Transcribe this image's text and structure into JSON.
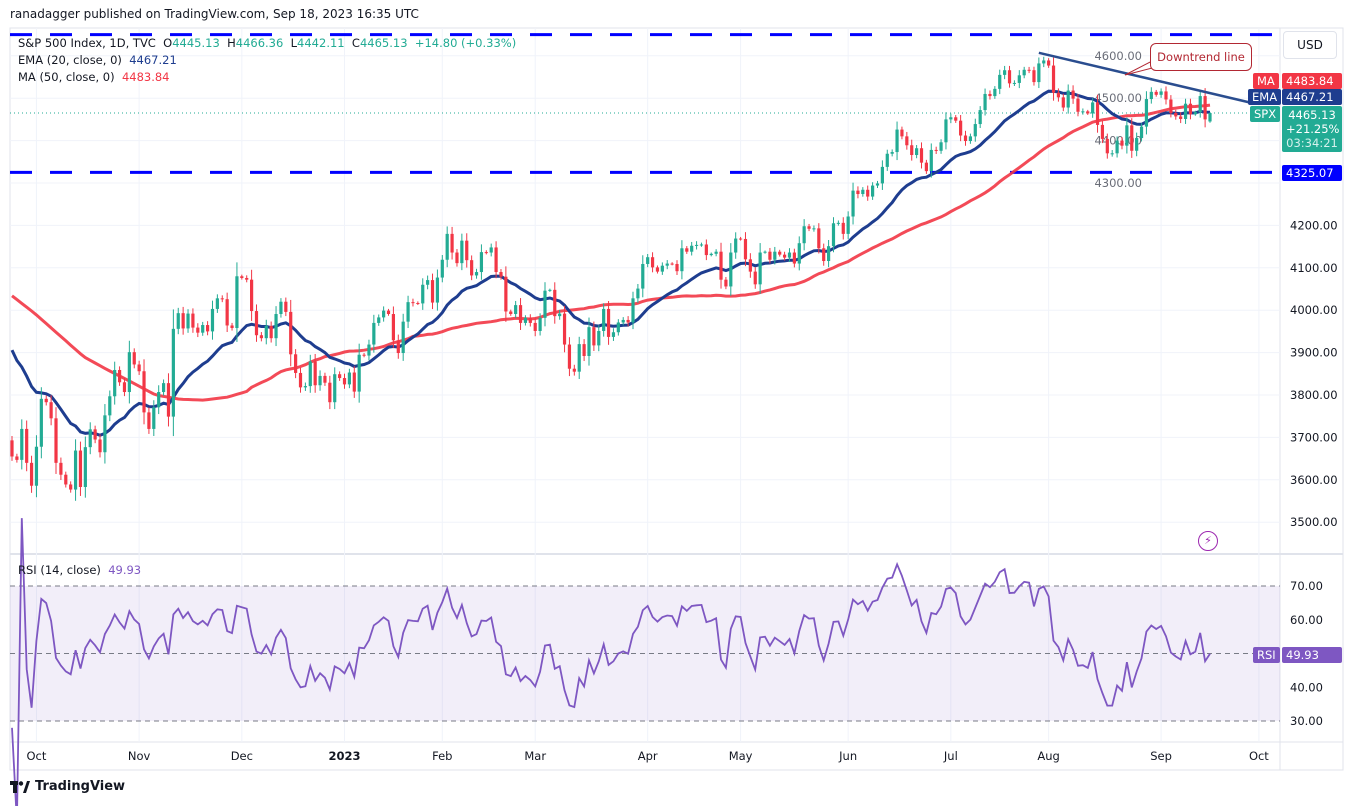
{
  "header": {
    "published": "ranadagger published on TradingView.com, Sep 18, 2023 16:35 UTC"
  },
  "legend": {
    "symbol": "S&P 500 Index, 1D, TVC",
    "o_label": "O",
    "open": "4445.13",
    "h_label": "H",
    "high": "4466.36",
    "l_label": "L",
    "low": "4442.11",
    "c_label": "C",
    "close": "4465.13",
    "change": "+14.80 (+0.33%)",
    "ema_label": "EMA (20, close, 0)",
    "ema_value": "4467.21",
    "ma_label": "MA (50, close, 0)",
    "ma_value": "4483.84",
    "rsi_label": "RSI (14, close)",
    "rsi_value": "49.93"
  },
  "price_scale": {
    "currency": "USD",
    "ma_tag": "MA",
    "ma_price": "4483.84",
    "ema_tag": "EMA",
    "ema_price": "4467.21",
    "spx_tag": "SPX",
    "spx_price": "4465.13",
    "spx_change": "+21.25%",
    "spx_countdown": "03:34:21",
    "level_price": "4325.07",
    "rsi_tag": "RSI",
    "rsi_price": "49.93"
  },
  "annotation": {
    "text": "Downtrend line"
  },
  "footer": {
    "brand": "TradingView"
  },
  "colors": {
    "up": "#22ab94",
    "down": "#f23645",
    "ema": "#1e3d8f",
    "ma": "#f23645",
    "rsi": "#7e57c2",
    "level": "#0000ff",
    "trendline": "#2a4d8f"
  },
  "chart_data": {
    "type": "candlestick",
    "title": "S&P 500 Index, 1D, TVC",
    "ylim": [
      3430,
      4680
    ],
    "yticks": [
      3500,
      3600,
      3700,
      3800,
      3900,
      4000,
      4100,
      4200,
      4300,
      4400,
      4500,
      4600
    ],
    "xtick_labels": [
      "Oct",
      "Nov",
      "Dec",
      "2023",
      "Feb",
      "Mar",
      "Apr",
      "May",
      "Jun",
      "Jul",
      "Aug",
      "Sep",
      "Oct"
    ],
    "grid": true,
    "first_open": 3693,
    "months": [
      {
        "month": "2022-09",
        "closes": [
          3655,
          3647,
          3720,
          3640,
          3586
        ]
      },
      {
        "month": "2022-10",
        "closes": [
          3678,
          3791,
          3783,
          3745,
          3640,
          3612,
          3589,
          3577,
          3669,
          3583,
          3677,
          3719,
          3695,
          3665,
          3752,
          3797,
          3859,
          3830,
          3807,
          3901,
          3872
        ]
      },
      {
        "month": "2022-11",
        "closes": [
          3856,
          3759,
          3720,
          3771,
          3807,
          3828,
          3749,
          3956,
          3993,
          3957,
          3992,
          3959,
          3947,
          3965,
          3950,
          4003,
          4028,
          4026,
          3964,
          3958,
          4080
        ]
      },
      {
        "month": "2022-12",
        "closes": [
          4076,
          4072,
          3998,
          3941,
          3934,
          3963,
          3934,
          3991,
          4020,
          3996,
          3896,
          3852,
          3818,
          3821,
          3879,
          3823,
          3845,
          3829,
          3783,
          3849,
          3840
        ]
      },
      {
        "month": "2023-01",
        "closes": [
          3825,
          3853,
          3808,
          3895,
          3893,
          3919,
          3970,
          3983,
          3999,
          3991,
          3929,
          3899,
          3973,
          4019,
          4017,
          4016,
          4060,
          4071,
          4018,
          4077
        ]
      },
      {
        "month": "2023-02",
        "closes": [
          4119,
          4180,
          4136,
          4111,
          4164,
          4118,
          4082,
          4090,
          4137,
          4136,
          4148,
          4090,
          4079,
          3997,
          3991,
          4012,
          3970,
          3982,
          3970
        ]
      },
      {
        "month": "2023-03",
        "closes": [
          3951,
          3982,
          4046,
          4048,
          3986,
          3992,
          3919,
          3862,
          3855,
          3920,
          3892,
          3960,
          3917,
          3951,
          4003,
          3937,
          3948,
          3971,
          3977,
          3971,
          4028,
          4051,
          4109
        ]
      },
      {
        "month": "2023-04",
        "closes": [
          4125,
          4101,
          4091,
          4105,
          4110,
          4109,
          4092,
          4146,
          4138,
          4152,
          4154,
          4155,
          4130,
          4133,
          4138,
          4072,
          4056,
          4136,
          4169
        ]
      },
      {
        "month": "2023-05",
        "closes": [
          4168,
          4120,
          4091,
          4061,
          4136,
          4138,
          4119,
          4138,
          4131,
          4124,
          4136,
          4110,
          4158,
          4198,
          4192,
          4193,
          4146,
          4116,
          4151,
          4205,
          4206,
          4180
        ]
      },
      {
        "month": "2023-06",
        "closes": [
          4221,
          4282,
          4274,
          4284,
          4268,
          4294,
          4299,
          4338,
          4369,
          4373,
          4426,
          4410,
          4389,
          4366,
          4382,
          4348,
          4328,
          4378,
          4376,
          4396,
          4450
        ]
      },
      {
        "month": "2023-07",
        "closes": [
          4455,
          4447,
          4412,
          4399,
          4410,
          4439,
          4472,
          4510,
          4505,
          4522,
          4555,
          4566,
          4535,
          4536,
          4554,
          4567,
          4566,
          4538,
          4582,
          4589
        ]
      },
      {
        "month": "2023-08",
        "closes": [
          4577,
          4513,
          4502,
          4478,
          4518,
          4499,
          4468,
          4469,
          4464,
          4490,
          4437,
          4404,
          4370,
          4370,
          4400,
          4388,
          4436,
          4376,
          4406,
          4433,
          4498,
          4515,
          4508
        ]
      },
      {
        "month": "2023-09",
        "closes": [
          4516,
          4497,
          4465,
          4457,
          4451,
          4487,
          4462,
          4467,
          4505,
          4450,
          4465
        ]
      }
    ],
    "last_candle": {
      "open": 4445.13,
      "high": 4466.36,
      "low": 4442.11,
      "close": 4465.13
    },
    "ema20_start": 3906,
    "ma50_early": [
      4034,
      3990,
      3940,
      3890,
      3859,
      3830,
      3800,
      3790,
      3788,
      3795,
      3812
    ],
    "horizontal_levels": [
      4650,
      4325.07
    ],
    "trendline": {
      "label": "Downtrend line",
      "from": [
        "2023-07-27",
        4607
      ],
      "to": [
        "2023-09-18",
        4512
      ]
    },
    "rsi": {
      "period": 14,
      "ylim": [
        24,
        80
      ],
      "bands": [
        30,
        70
      ],
      "mid": 50,
      "yticks": [
        30,
        40,
        60,
        70
      ]
    }
  }
}
